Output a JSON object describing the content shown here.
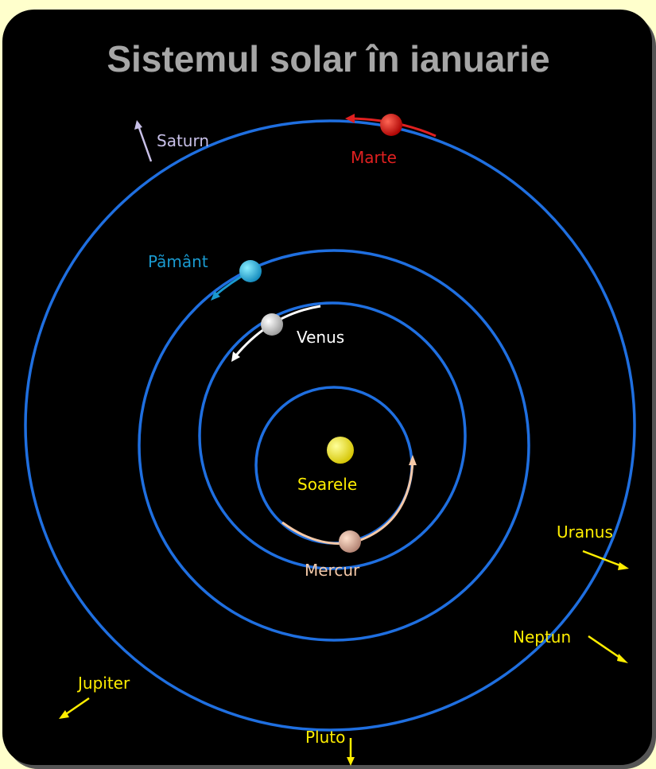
{
  "title": "Sistemul solar în ianuarie",
  "labels": {
    "saturn": "Saturn",
    "mars": "Marte",
    "earth": "Pãmânt",
    "venus": "Venus",
    "sun": "Soarele",
    "mercury": "Mercur",
    "uranus": "Uranus",
    "neptune": "Neptun",
    "jupiter": "Jupiter",
    "pluto": "Pluto"
  }
}
